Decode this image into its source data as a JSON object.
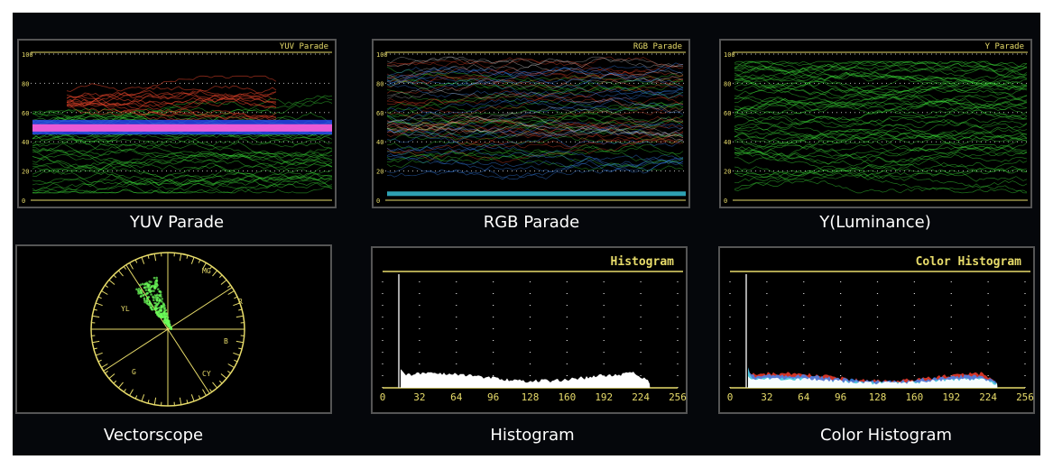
{
  "panels": [
    {
      "kind": "waveform",
      "caption": "YUV Parade",
      "screen_title": "YUV Parade",
      "ylim": [
        0,
        100
      ],
      "yticks": [
        0,
        20,
        40,
        60,
        80,
        100
      ]
    },
    {
      "kind": "waveform",
      "caption": "RGB Parade",
      "screen_title": "RGB Parade",
      "ylim": [
        0,
        100
      ],
      "yticks": [
        0,
        20,
        40,
        60,
        80,
        100
      ]
    },
    {
      "kind": "waveform",
      "caption": "Y(Luminance)",
      "screen_title": "Y Parade",
      "ylim": [
        0,
        100
      ],
      "yticks": [
        0,
        20,
        40,
        60,
        80,
        100
      ]
    },
    {
      "kind": "vectorscope",
      "caption": "Vectorscope",
      "labels": [
        "MG",
        "R",
        "YL",
        "G",
        "CY",
        "B"
      ]
    },
    {
      "kind": "histogram",
      "caption": "Histogram",
      "screen_title": "Histogram",
      "xlim": [
        0,
        256
      ],
      "xticks": [
        0,
        32,
        64,
        96,
        128,
        160,
        192,
        224,
        256
      ]
    },
    {
      "kind": "histogram",
      "caption": "Color  Histogram",
      "screen_title": "Color Histogram",
      "xlim": [
        0,
        256
      ],
      "xticks": [
        0,
        32,
        64,
        96,
        128,
        160,
        192,
        224,
        256
      ],
      "colored": true
    }
  ]
}
